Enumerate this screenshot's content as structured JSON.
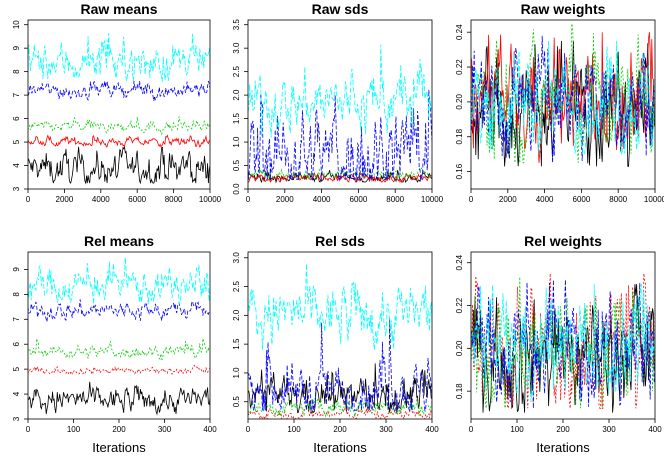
{
  "colors": {
    "black": "#000000",
    "red": "#ff0000",
    "green": "#00cd00",
    "blue": "#0000ff",
    "cyan": "#00ffff"
  },
  "chart_data": [
    {
      "type": "line",
      "title": "Raw means",
      "xlabel": "",
      "xlim": [
        0,
        10000
      ],
      "ylim": [
        3.0,
        10.2
      ],
      "xticks": [
        "0",
        "2000",
        "4000",
        "6000",
        "8000",
        "10000"
      ],
      "yticks": [
        "3",
        "4",
        "5",
        "6",
        "7",
        "8",
        "9",
        "10"
      ],
      "series": [
        {
          "color": "#000000",
          "dash": "",
          "center": 3.85,
          "spread": 0.3,
          "min": 3.25,
          "max": 4.8
        },
        {
          "color": "#ff0000",
          "dash": "",
          "center": 5.0,
          "spread": 0.08,
          "min": 4.8,
          "max": 5.3
        },
        {
          "color": "#00cd00",
          "dash": "2,2",
          "center": 5.65,
          "spread": 0.1,
          "min": 5.3,
          "max": 6.3
        },
        {
          "color": "#0000ff",
          "dash": "4,2",
          "center": 7.2,
          "spread": 0.15,
          "min": 6.6,
          "max": 7.6
        },
        {
          "color": "#00ffff",
          "dash": "5,2",
          "center": 8.35,
          "spread": 0.35,
          "min": 7.6,
          "max": 9.8
        }
      ]
    },
    {
      "type": "line",
      "title": "Raw sds",
      "xlabel": "",
      "xlim": [
        0,
        10000
      ],
      "ylim": [
        0.0,
        3.6
      ],
      "xticks": [
        "0",
        "2000",
        "4000",
        "6000",
        "8000",
        "10000"
      ],
      "yticks": [
        "0.0",
        "0.5",
        "1.0",
        "1.5",
        "2.0",
        "2.5",
        "3.0",
        "3.5"
      ],
      "series": [
        {
          "color": "#000000",
          "dash": "",
          "center": 0.25,
          "spread": 0.04,
          "min": 0.15,
          "max": 0.4
        },
        {
          "color": "#ff0000",
          "dash": "",
          "center": 0.22,
          "spread": 0.04,
          "min": 0.15,
          "max": 0.35
        },
        {
          "color": "#00cd00",
          "dash": "2,2",
          "center": 0.32,
          "spread": 0.04,
          "min": 0.2,
          "max": 0.45
        },
        {
          "color": "#0000ff",
          "dash": "4,2",
          "center": 0.7,
          "spread": 0.4,
          "min": 0.2,
          "max": 2.8
        },
        {
          "color": "#00ffff",
          "dash": "5,2",
          "center": 1.85,
          "spread": 0.25,
          "min": 0.3,
          "max": 3.5
        }
      ]
    },
    {
      "type": "line",
      "title": "Raw weights",
      "xlabel": "",
      "xlim": [
        0,
        10000
      ],
      "ylim": [
        0.15,
        0.247
      ],
      "xticks": [
        "0",
        "2000",
        "4000",
        "6000",
        "8000",
        "10000"
      ],
      "yticks": [
        "0.16",
        "0.18",
        "0.20",
        "0.22",
        "0.24"
      ],
      "series": [
        {
          "color": "#000000",
          "dash": "",
          "center": 0.195,
          "spread": 0.014,
          "min": 0.163,
          "max": 0.235
        },
        {
          "color": "#ff0000",
          "dash": "",
          "center": 0.2,
          "spread": 0.013,
          "min": 0.165,
          "max": 0.24
        },
        {
          "color": "#00cd00",
          "dash": "2,2",
          "center": 0.2,
          "spread": 0.013,
          "min": 0.165,
          "max": 0.245
        },
        {
          "color": "#0000ff",
          "dash": "4,2",
          "center": 0.2,
          "spread": 0.013,
          "min": 0.165,
          "max": 0.24
        },
        {
          "color": "#00ffff",
          "dash": "5,2",
          "center": 0.2,
          "spread": 0.011,
          "min": 0.17,
          "max": 0.235
        }
      ]
    },
    {
      "type": "line",
      "title": "Rel means",
      "xlabel": "Iterations",
      "xlim": [
        0,
        400
      ],
      "ylim": [
        3.0,
        9.7
      ],
      "xticks": [
        "0",
        "100",
        "200",
        "300",
        "400"
      ],
      "yticks": [
        "3",
        "4",
        "5",
        "6",
        "7",
        "8",
        "9"
      ],
      "series": [
        {
          "color": "#000000",
          "dash": "",
          "center": 3.75,
          "spread": 0.22,
          "min": 3.2,
          "max": 4.5
        },
        {
          "color": "#ff0000",
          "dash": "2,2",
          "center": 4.95,
          "spread": 0.06,
          "min": 4.8,
          "max": 5.15
        },
        {
          "color": "#00cd00",
          "dash": "2,2",
          "center": 5.7,
          "spread": 0.1,
          "min": 5.4,
          "max": 6.5
        },
        {
          "color": "#0000ff",
          "dash": "4,2",
          "center": 7.35,
          "spread": 0.15,
          "min": 6.9,
          "max": 7.8
        },
        {
          "color": "#00ffff",
          "dash": "5,2",
          "center": 8.35,
          "spread": 0.3,
          "min": 7.6,
          "max": 9.5
        }
      ]
    },
    {
      "type": "line",
      "title": "Rel sds",
      "xlabel": "Iterations",
      "xlim": [
        0,
        400
      ],
      "ylim": [
        0.2,
        3.1
      ],
      "xticks": [
        "0",
        "100",
        "200",
        "300",
        "400"
      ],
      "yticks": [
        "0.5",
        "1.0",
        "1.5",
        "2.0",
        "2.5",
        "3.0"
      ],
      "series": [
        {
          "color": "#000000",
          "dash": "",
          "center": 0.6,
          "spread": 0.14,
          "min": 0.3,
          "max": 1.3
        },
        {
          "color": "#ff0000",
          "dash": "2,2",
          "center": 0.28,
          "spread": 0.04,
          "min": 0.2,
          "max": 0.4
        },
        {
          "color": "#00cd00",
          "dash": "2,2",
          "center": 0.4,
          "spread": 0.06,
          "min": 0.25,
          "max": 0.6
        },
        {
          "color": "#0000ff",
          "dash": "4,2",
          "center": 0.7,
          "spread": 0.18,
          "min": 0.35,
          "max": 2.6
        },
        {
          "color": "#00ffff",
          "dash": "5,2",
          "center": 2.0,
          "spread": 0.22,
          "min": 1.4,
          "max": 3.05
        }
      ]
    },
    {
      "type": "line",
      "title": "Rel weights",
      "xlabel": "Iterations",
      "xlim": [
        0,
        400
      ],
      "ylim": [
        0.167,
        0.245
      ],
      "xticks": [
        "0",
        "100",
        "200",
        "300",
        "400"
      ],
      "yticks": [
        "0.18",
        "0.20",
        "0.22",
        "0.24"
      ],
      "series": [
        {
          "color": "#000000",
          "dash": "",
          "center": 0.198,
          "spread": 0.011,
          "min": 0.17,
          "max": 0.23
        },
        {
          "color": "#ff0000",
          "dash": "2,2",
          "center": 0.2,
          "spread": 0.012,
          "min": 0.172,
          "max": 0.235
        },
        {
          "color": "#00cd00",
          "dash": "2,2",
          "center": 0.2,
          "spread": 0.011,
          "min": 0.172,
          "max": 0.242
        },
        {
          "color": "#0000ff",
          "dash": "4,2",
          "center": 0.2,
          "spread": 0.011,
          "min": 0.172,
          "max": 0.232
        },
        {
          "color": "#00ffff",
          "dash": "5,2",
          "center": 0.2,
          "spread": 0.01,
          "min": 0.175,
          "max": 0.23
        }
      ]
    }
  ]
}
